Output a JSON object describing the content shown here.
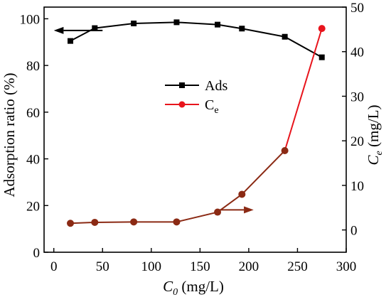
{
  "chart_data": {
    "type": "line",
    "xlabel": {
      "main": "C",
      "sub": "0",
      "unit": " (mg/L)"
    },
    "ylabel_left": "Adsorption ratio (%)",
    "ylabel_right": {
      "main": "C",
      "sub": "e",
      "unit": " (mg/L)"
    },
    "xlim": [
      -10,
      300
    ],
    "ylim_left": [
      0,
      105
    ],
    "ylim_right": [
      -5,
      50
    ],
    "xticks": [
      0,
      50,
      100,
      150,
      200,
      250,
      300
    ],
    "yticks_left": [
      0,
      20,
      40,
      60,
      80,
      100
    ],
    "yticks_right": [
      0,
      10,
      20,
      30,
      40,
      50
    ],
    "grid": false,
    "legend_position": "center",
    "series": [
      {
        "name": "Ads",
        "axis": "left",
        "color": "#000000",
        "marker": "square",
        "x": [
          17,
          42,
          82,
          126,
          168,
          193,
          237,
          275
        ],
        "y": [
          90.5,
          96,
          98,
          98.5,
          97.5,
          95.8,
          92.3,
          83.5
        ]
      },
      {
        "name": "C",
        "name_sub": "e",
        "axis": "right",
        "color": "#e8141c",
        "marker": "circle",
        "x": [
          17,
          42,
          82,
          126,
          168,
          193,
          237,
          275
        ],
        "y": [
          1.5,
          1.7,
          1.8,
          1.8,
          4.0,
          8.0,
          17.8,
          45.2
        ]
      }
    ],
    "overlap_color": "#8b2a14",
    "annotations": [
      {
        "type": "arrow",
        "points_to": "left-axis",
        "color": "#000000"
      },
      {
        "type": "arrow",
        "points_to": "right-axis",
        "color": "#8b2a14"
      }
    ]
  }
}
